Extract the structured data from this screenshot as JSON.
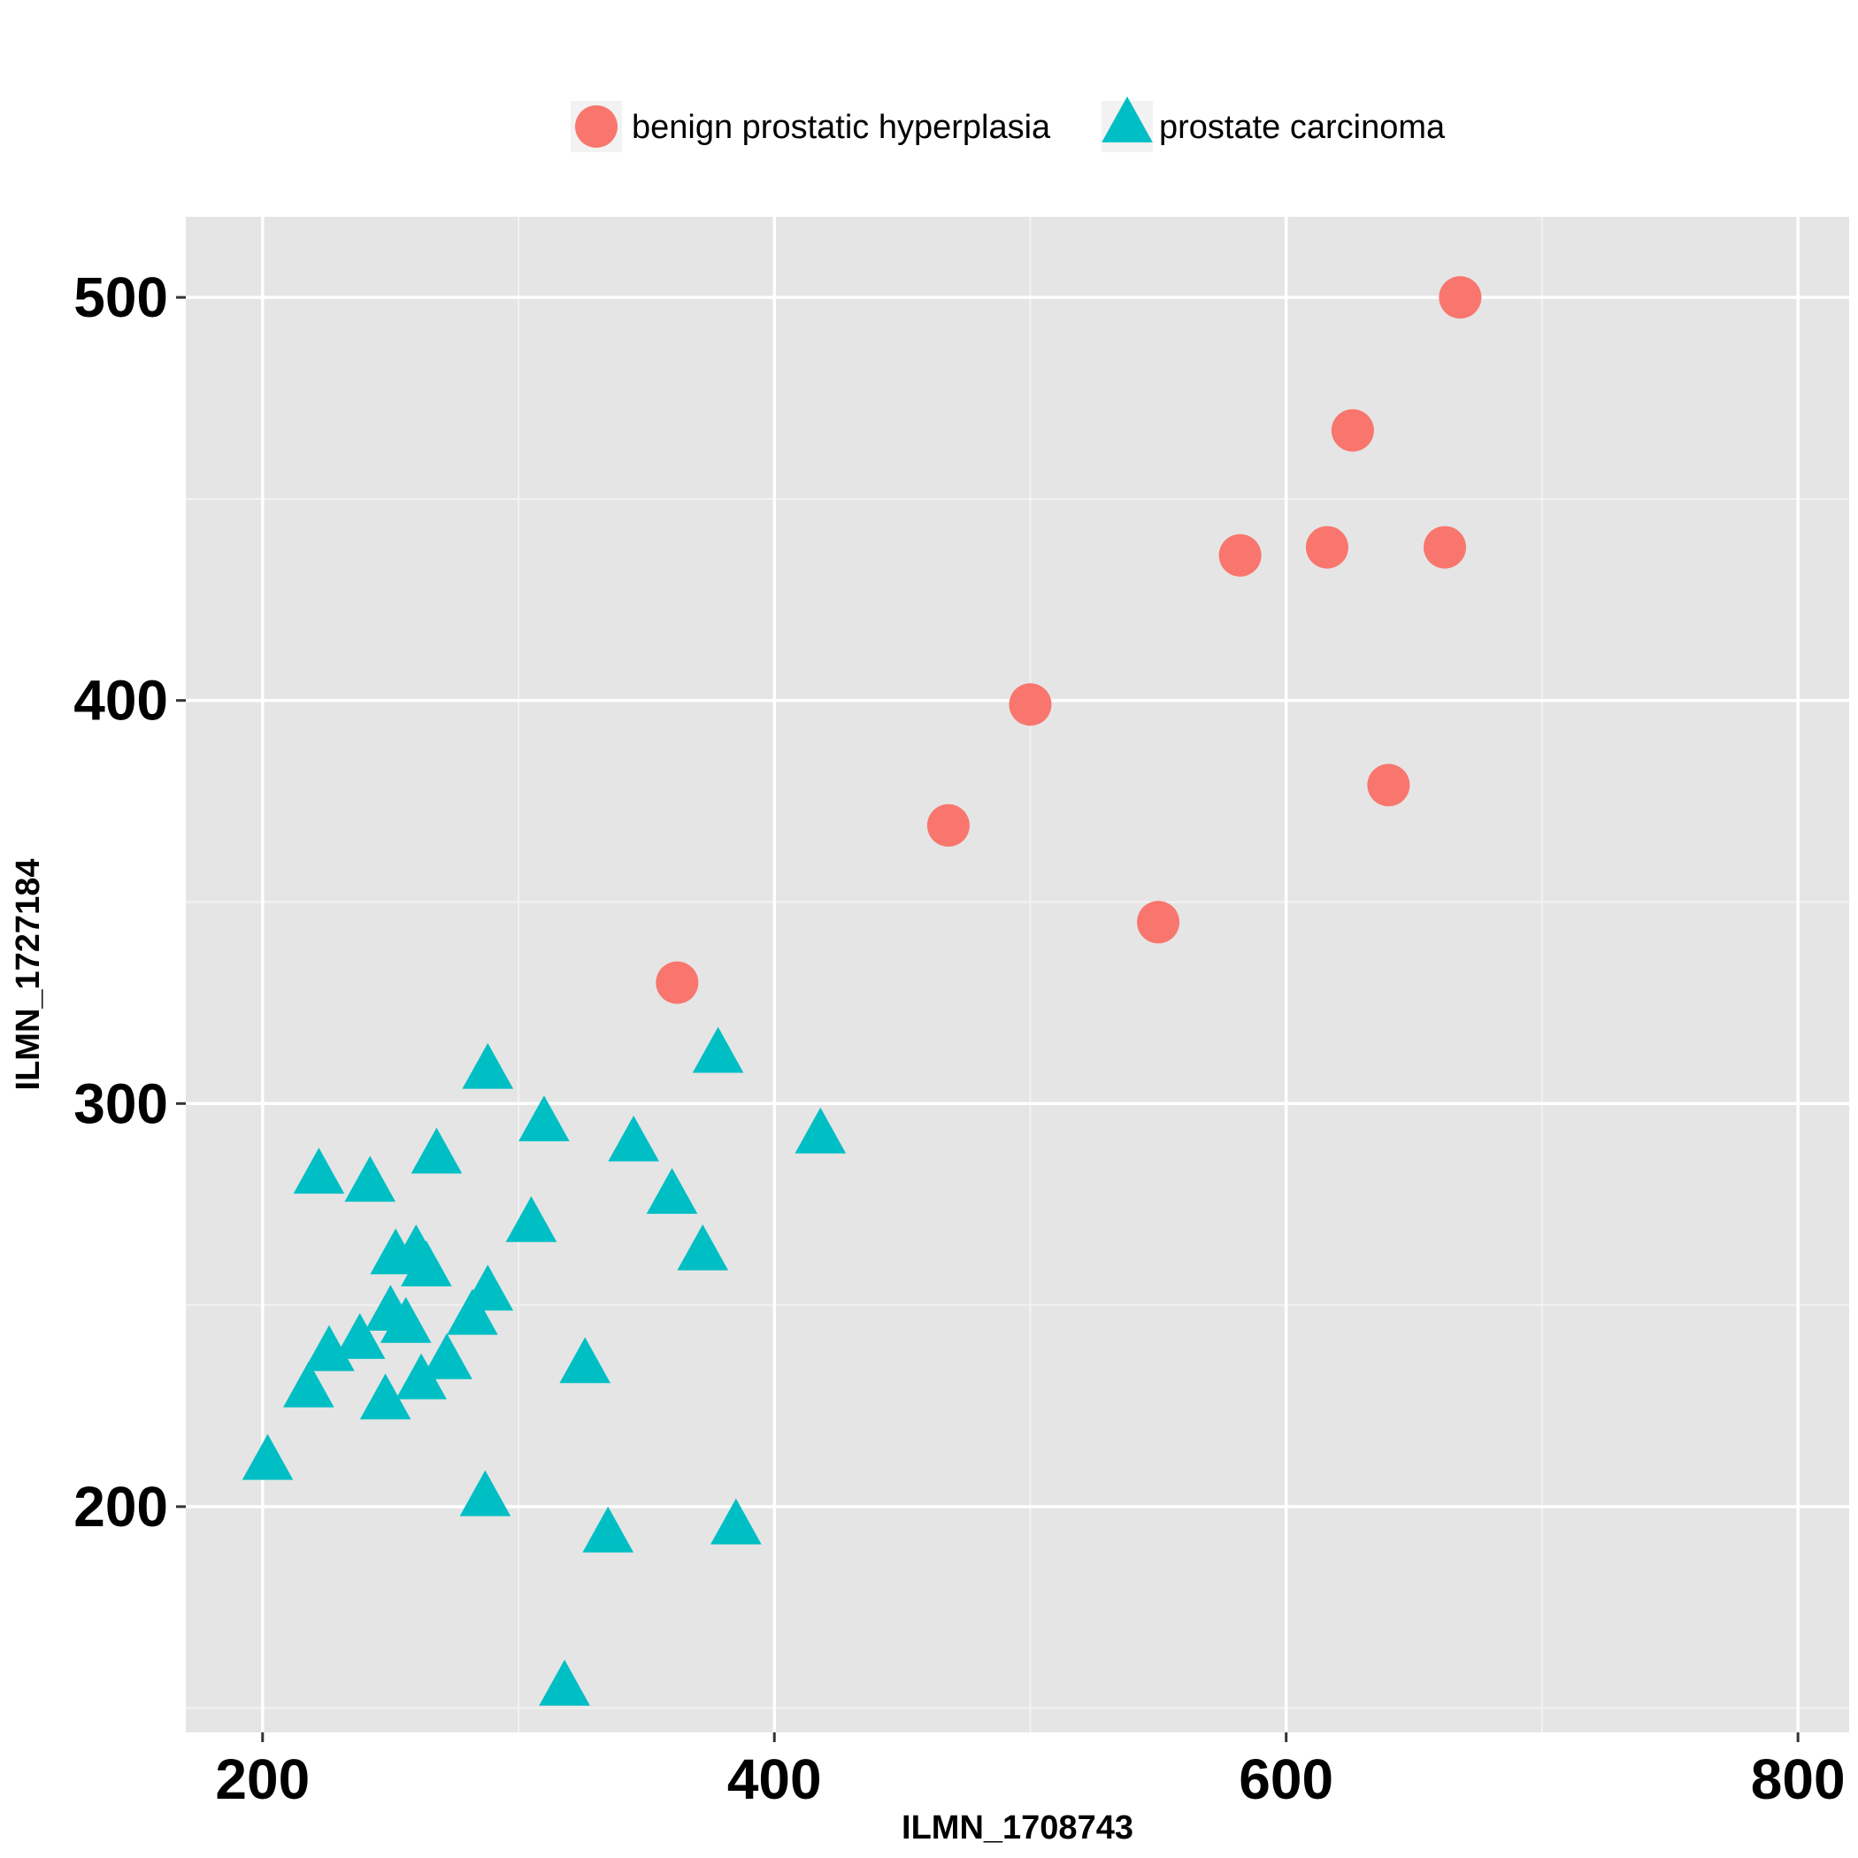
{
  "chart_data": {
    "type": "scatter",
    "xlabel": "ILMN_1708743",
    "ylabel": "ILMN_1727184",
    "xlim": [
      170,
      820
    ],
    "ylim": [
      144,
      520
    ],
    "x_ticks": [
      200,
      400,
      600,
      800
    ],
    "y_ticks": [
      200,
      300,
      400,
      500
    ],
    "grid": true,
    "legend_position": "top",
    "series": [
      {
        "name": "benign prostatic hyperplasia",
        "marker": "circle",
        "color": "#F8766D",
        "points": [
          [
            668,
            500
          ],
          [
            626,
            467
          ],
          [
            582,
            436
          ],
          [
            616,
            438
          ],
          [
            662,
            438
          ],
          [
            500,
            399
          ],
          [
            640,
            379
          ],
          [
            468,
            369
          ],
          [
            550,
            345
          ],
          [
            362,
            330
          ]
        ]
      },
      {
        "name": "prostate carcinoma",
        "marker": "triangle",
        "color": "#00BFC4",
        "points": [
          [
            378,
            312
          ],
          [
            288,
            308
          ],
          [
            310,
            295
          ],
          [
            345,
            290
          ],
          [
            418,
            292
          ],
          [
            268,
            287
          ],
          [
            222,
            282
          ],
          [
            242,
            280
          ],
          [
            360,
            277
          ],
          [
            305,
            270
          ],
          [
            372,
            263
          ],
          [
            252,
            262
          ],
          [
            260,
            263
          ],
          [
            264,
            259
          ],
          [
            288,
            253
          ],
          [
            282,
            247
          ],
          [
            250,
            248
          ],
          [
            256,
            245
          ],
          [
            238,
            241
          ],
          [
            226,
            238
          ],
          [
            272,
            236
          ],
          [
            326,
            235
          ],
          [
            262,
            231
          ],
          [
            218,
            229
          ],
          [
            248,
            226
          ],
          [
            202,
            211
          ],
          [
            287,
            202
          ],
          [
            335,
            193
          ],
          [
            385,
            195
          ],
          [
            318,
            155
          ]
        ]
      }
    ]
  }
}
